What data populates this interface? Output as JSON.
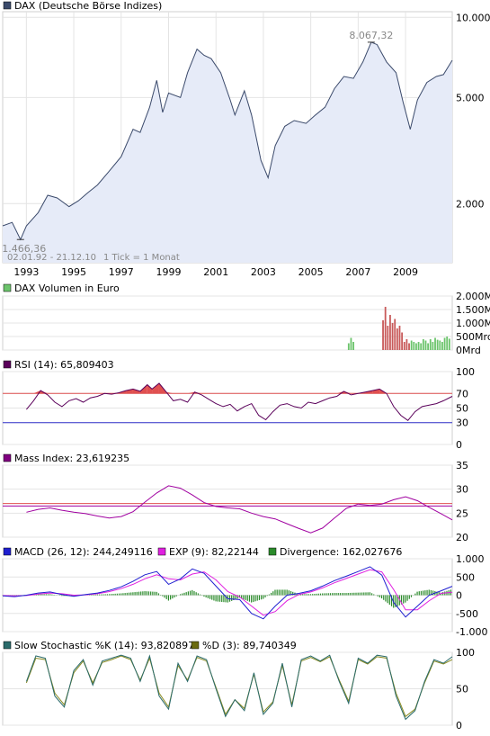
{
  "colors": {
    "price_line": "#3b4a6b",
    "price_fill": "#e6ebf8",
    "volume_bar": "#c85a5a",
    "volume_bar_recent": "#6cc46c",
    "rsi_line": "#5a005a",
    "rsi_overbought_fill": "#e05050",
    "rsi_upper_line": "#e05050",
    "rsi_lower_line": "#3333cc",
    "mass_line": "#a000a0",
    "mass_ref_line_1": "#e05050",
    "mass_ref_line_2": "#a000a0",
    "macd_line": "#1f1fd0",
    "exp_line": "#e020e0",
    "divergence_bar": "#2a8a2a",
    "stoch_k": "#2a6a6a",
    "stoch_d": "#8a8a20",
    "legend_dax": "#3b4a6b",
    "legend_volume": "#6cc46c",
    "legend_rsi": "#5a005a",
    "legend_mass": "#800080",
    "legend_macd": "#1f1fd0",
    "legend_exp": "#e020e0",
    "legend_divergence": "#2a8a2a",
    "legend_k": "#2a6a6a",
    "legend_d": "#6a6a10"
  },
  "chart_data": [
    {
      "type": "line",
      "legend": "DAX (Deutsche Börse Indizes)",
      "scale": "log",
      "xlim": [
        1992.0,
        2010.97
      ],
      "ylim": [
        1200,
        10500
      ],
      "y_ticks": [
        {
          "value": 10000,
          "label": "10.000"
        },
        {
          "value": 5000,
          "label": "5.000"
        },
        {
          "value": 2000,
          "label": "2.000"
        }
      ],
      "x_ticks": [
        {
          "value": 1993,
          "label": "1993"
        },
        {
          "value": 1995,
          "label": "1995"
        },
        {
          "value": 1997,
          "label": "1997"
        },
        {
          "value": 1999,
          "label": "1999"
        },
        {
          "value": 2001,
          "label": "2001"
        },
        {
          "value": 2003,
          "label": "2003"
        },
        {
          "value": 2005,
          "label": "2005"
        },
        {
          "value": 2007,
          "label": "2007"
        },
        {
          "value": 2009,
          "label": "2009"
        }
      ],
      "annotations": {
        "high": {
          "x": 2007.55,
          "y": 8067.32,
          "label": "8.067,32"
        },
        "low": {
          "x": 1992.75,
          "y": 1466.36,
          "label": "1.466,36"
        },
        "range_label": "02.01.92 - 21.12.10",
        "tick_label": "1 Tick = 1 Monat"
      },
      "x": [
        1992.0,
        1992.4,
        1992.75,
        1993.0,
        1993.5,
        1993.9,
        1994.3,
        1994.8,
        1995.2,
        1995.6,
        1996.0,
        1996.5,
        1997.0,
        1997.5,
        1997.8,
        1998.2,
        1998.5,
        1998.75,
        1999.0,
        1999.5,
        1999.8,
        2000.2,
        2000.5,
        2000.8,
        2001.2,
        2001.6,
        2001.8,
        2002.2,
        2002.5,
        2002.9,
        2003.2,
        2003.5,
        2003.9,
        2004.3,
        2004.8,
        2005.2,
        2005.6,
        2006.0,
        2006.4,
        2006.8,
        2007.2,
        2007.55,
        2007.8,
        2008.2,
        2008.6,
        2008.9,
        2009.2,
        2009.5,
        2009.9,
        2010.3,
        2010.6,
        2010.97
      ],
      "y": [
        1650,
        1700,
        1466,
        1650,
        1850,
        2150,
        2100,
        1950,
        2050,
        2200,
        2350,
        2650,
        3000,
        3800,
        3700,
        4600,
        5800,
        4400,
        5200,
        5000,
        6200,
        7600,
        7200,
        7000,
        6200,
        4900,
        4300,
        5300,
        4300,
        2900,
        2500,
        3300,
        3900,
        4100,
        4000,
        4300,
        4600,
        5400,
        6000,
        5900,
        6800,
        8067,
        7900,
        6800,
        6200,
        4800,
        3800,
        4900,
        5700,
        6000,
        6100,
        6900
      ]
    },
    {
      "type": "bar",
      "legend": "DAX Volumen in Euro",
      "ylim": [
        0,
        2000
      ],
      "y_ticks": [
        {
          "value": 2000,
          "label": "2.000Mrd"
        },
        {
          "value": 1500,
          "label": "1.500Mrd"
        },
        {
          "value": 1000,
          "label": "1.000Mrd"
        },
        {
          "value": 500,
          "label": "500Mrd"
        },
        {
          "value": 0,
          "label": "0Mrd"
        }
      ],
      "x": [
        2006.6,
        2006.7,
        2006.8,
        2008.05,
        2008.15,
        2008.25,
        2008.35,
        2008.45,
        2008.55,
        2008.65,
        2008.75,
        2008.85,
        2008.95,
        2009.05,
        2009.15,
        2009.25,
        2009.35,
        2009.45,
        2009.55,
        2009.65,
        2009.75,
        2009.85,
        2009.95,
        2010.05,
        2010.15,
        2010.25,
        2010.35,
        2010.45,
        2010.55,
        2010.65,
        2010.75,
        2010.85
      ],
      "values": [
        250,
        450,
        300,
        1100,
        1600,
        900,
        1300,
        1000,
        1150,
        800,
        900,
        650,
        300,
        400,
        250,
        350,
        300,
        250,
        300,
        250,
        400,
        350,
        250,
        400,
        300,
        450,
        380,
        350,
        300,
        450,
        500,
        420
      ]
    },
    {
      "type": "line",
      "legend": "RSI (14): 65,809403",
      "ylim": [
        0,
        100
      ],
      "y_ticks": [
        {
          "value": 100,
          "label": "100"
        },
        {
          "value": 70,
          "label": "70"
        },
        {
          "value": 50,
          "label": "50"
        },
        {
          "value": 30,
          "label": "30"
        },
        {
          "value": 0,
          "label": "0"
        }
      ],
      "upper": 70,
      "lower": 30,
      "x": [
        1993.0,
        1993.3,
        1993.6,
        1993.9,
        1994.2,
        1994.5,
        1994.8,
        1995.1,
        1995.4,
        1995.7,
        1996.0,
        1996.3,
        1996.6,
        1996.9,
        1997.2,
        1997.5,
        1997.8,
        1998.1,
        1998.3,
        1998.6,
        1998.9,
        1999.2,
        1999.5,
        1999.8,
        2000.1,
        2000.4,
        2000.7,
        2001.0,
        2001.3,
        2001.6,
        2001.9,
        2002.2,
        2002.5,
        2002.8,
        2003.1,
        2003.4,
        2003.7,
        2004.0,
        2004.3,
        2004.6,
        2004.9,
        2005.2,
        2005.5,
        2005.8,
        2006.1,
        2006.4,
        2006.7,
        2007.0,
        2007.3,
        2007.6,
        2007.9,
        2008.2,
        2008.5,
        2008.8,
        2009.1,
        2009.4,
        2009.7,
        2010.0,
        2010.3,
        2010.6,
        2010.97
      ],
      "y": [
        48,
        60,
        74,
        68,
        58,
        52,
        60,
        63,
        58,
        64,
        66,
        70,
        69,
        71,
        74,
        76,
        73,
        82,
        76,
        84,
        72,
        60,
        62,
        58,
        72,
        68,
        62,
        56,
        52,
        55,
        46,
        52,
        56,
        40,
        34,
        45,
        54,
        56,
        52,
        50,
        58,
        56,
        60,
        64,
        66,
        73,
        68,
        70,
        72,
        74,
        76,
        70,
        52,
        40,
        33,
        45,
        52,
        54,
        56,
        60,
        66
      ]
    },
    {
      "type": "line",
      "legend": "Mass Index: 23,619235",
      "ylim": [
        20,
        35
      ],
      "y_ticks": [
        {
          "value": 35,
          "label": "35"
        },
        {
          "value": 30,
          "label": "30"
        },
        {
          "value": 25,
          "label": "25"
        },
        {
          "value": 20,
          "label": "20"
        }
      ],
      "reference_lines": [
        27,
        26.5
      ],
      "x": [
        1993.0,
        1993.5,
        1994.0,
        1994.5,
        1995.0,
        1995.5,
        1996.0,
        1996.5,
        1997.0,
        1997.5,
        1998.0,
        1998.5,
        1999.0,
        1999.5,
        2000.0,
        2000.5,
        2001.0,
        2001.5,
        2002.0,
        2002.5,
        2003.0,
        2003.5,
        2004.0,
        2004.5,
        2005.0,
        2005.5,
        2006.0,
        2006.5,
        2007.0,
        2007.5,
        2008.0,
        2008.5,
        2009.0,
        2009.5,
        2010.0,
        2010.5,
        2010.97
      ],
      "y": [
        25.2,
        25.8,
        26.1,
        25.6,
        25.2,
        24.9,
        24.4,
        24.0,
        24.3,
        25.3,
        27.3,
        29.2,
        30.7,
        30.2,
        28.8,
        27.2,
        26.4,
        26.1,
        25.9,
        25.0,
        24.3,
        23.8,
        22.8,
        21.8,
        20.9,
        21.9,
        24.0,
        26.0,
        26.9,
        26.6,
        26.9,
        27.8,
        28.4,
        27.6,
        26.2,
        24.9,
        23.6
      ]
    },
    {
      "type": "line",
      "legend_macd": "MACD (26, 12): 244,249116",
      "legend_exp": "EXP (9): 82,22144",
      "legend_divergence": "Divergence: 162,027676",
      "ylim": [
        -1000,
        1000
      ],
      "y_ticks": [
        {
          "value": 1000,
          "label": "1.000"
        },
        {
          "value": 500,
          "label": "500"
        },
        {
          "value": 0,
          "label": "0"
        },
        {
          "value": -500,
          "label": "-500"
        },
        {
          "value": -1000,
          "label": "-1.000"
        }
      ],
      "x": [
        1992.0,
        1992.5,
        1993.0,
        1993.5,
        1994.0,
        1994.5,
        1995.0,
        1995.5,
        1996.0,
        1996.5,
        1997.0,
        1997.5,
        1998.0,
        1998.5,
        1999.0,
        1999.5,
        2000.0,
        2000.5,
        2001.0,
        2001.5,
        2002.0,
        2002.5,
        2003.0,
        2003.5,
        2004.0,
        2004.5,
        2005.0,
        2005.5,
        2006.0,
        2006.5,
        2007.0,
        2007.5,
        2008.0,
        2008.5,
        2009.0,
        2009.5,
        2010.0,
        2010.5,
        2010.97
      ],
      "macd": [
        -20,
        -40,
        0,
        60,
        90,
        20,
        -30,
        20,
        60,
        130,
        230,
        380,
        560,
        650,
        300,
        450,
        720,
        600,
        250,
        -100,
        -120,
        -500,
        -650,
        -300,
        0,
        50,
        120,
        250,
        400,
        520,
        650,
        780,
        550,
        -200,
        -600,
        -300,
        0,
        120,
        244
      ],
      "exp": [
        -10,
        -20,
        -10,
        30,
        60,
        40,
        0,
        10,
        40,
        100,
        180,
        300,
        450,
        560,
        450,
        420,
        580,
        640,
        420,
        100,
        -50,
        -300,
        -550,
        -450,
        -150,
        20,
        90,
        200,
        340,
        460,
        580,
        700,
        640,
        150,
        -400,
        -400,
        -150,
        50,
        82
      ],
      "divergence": [
        -10,
        -20,
        10,
        30,
        30,
        -20,
        -30,
        10,
        20,
        30,
        50,
        80,
        110,
        90,
        -150,
        30,
        140,
        -40,
        -170,
        -200,
        -70,
        -200,
        -100,
        150,
        150,
        30,
        30,
        50,
        60,
        60,
        70,
        80,
        -90,
        -350,
        -200,
        100,
        150,
        70,
        162
      ]
    },
    {
      "type": "line",
      "legend_k": "Slow Stochastic %K (14): 93,820897",
      "legend_d": "%D (3): 89,740349",
      "ylim": [
        0,
        100
      ],
      "y_ticks": [
        {
          "value": 100,
          "label": "100"
        },
        {
          "value": 50,
          "label": "50"
        },
        {
          "value": 0,
          "label": "0"
        }
      ],
      "x": [
        1993.0,
        1993.4,
        1993.8,
        1994.2,
        1994.6,
        1995.0,
        1995.4,
        1995.8,
        1996.2,
        1996.6,
        1997.0,
        1997.4,
        1997.8,
        1998.2,
        1998.6,
        1999.0,
        1999.4,
        1999.8,
        2000.2,
        2000.6,
        2001.0,
        2001.4,
        2001.8,
        2002.2,
        2002.6,
        2003.0,
        2003.4,
        2003.8,
        2004.2,
        2004.6,
        2005.0,
        2005.4,
        2005.8,
        2006.2,
        2006.6,
        2007.0,
        2007.4,
        2007.8,
        2008.2,
        2008.6,
        2009.0,
        2009.4,
        2009.8,
        2010.2,
        2010.6,
        2010.97
      ],
      "k": [
        60,
        95,
        92,
        40,
        25,
        75,
        90,
        55,
        88,
        92,
        96,
        92,
        60,
        95,
        40,
        22,
        85,
        60,
        95,
        90,
        50,
        12,
        35,
        20,
        72,
        15,
        30,
        85,
        25,
        90,
        95,
        88,
        96,
        60,
        30,
        92,
        85,
        96,
        94,
        40,
        8,
        20,
        60,
        90,
        85,
        94
      ],
      "d": [
        58,
        92,
        90,
        44,
        28,
        72,
        88,
        58,
        86,
        90,
        95,
        90,
        62,
        92,
        44,
        25,
        82,
        62,
        93,
        88,
        52,
        15,
        35,
        23,
        70,
        18,
        32,
        82,
        28,
        88,
        93,
        87,
        94,
        62,
        33,
        90,
        84,
        94,
        92,
        44,
        12,
        22,
        58,
        88,
        84,
        90
      ]
    }
  ]
}
